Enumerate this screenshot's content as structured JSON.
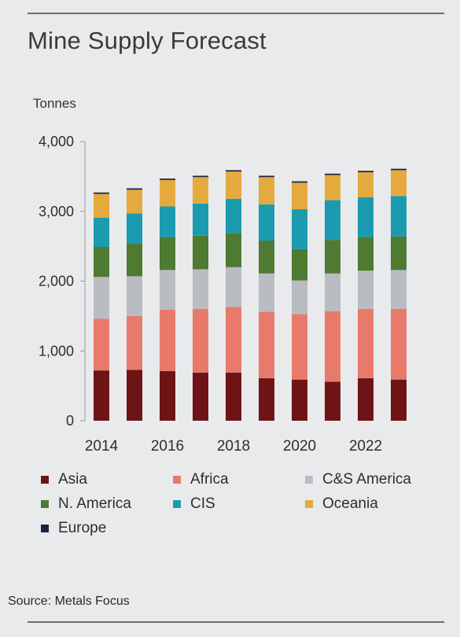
{
  "page": {
    "title": "Mine Supply Forecast",
    "unit_label": "Tonnes",
    "source": "Source: Metals Focus"
  },
  "chart_data": {
    "type": "bar",
    "stacked": true,
    "title": "Mine Supply Forecast",
    "ylabel": "Tonnes",
    "xlabel": "",
    "ylim": [
      0,
      4000
    ],
    "yticks": [
      0,
      1000,
      2000,
      3000,
      4000
    ],
    "ytick_labels": [
      "0",
      "1,000",
      "2,000",
      "3,000",
      "4,000"
    ],
    "x": [
      2014,
      2015,
      2016,
      2017,
      2018,
      2019,
      2020,
      2021,
      2022,
      2023
    ],
    "xtick_labels": [
      "2014",
      "2016",
      "2018",
      "2020",
      "2022"
    ],
    "xtick_years": [
      2014,
      2016,
      2018,
      2020,
      2022
    ],
    "grid": false,
    "legend_position": "bottom",
    "series": [
      {
        "name": "Asia",
        "color": "#6e1416",
        "values": [
          720,
          730,
          710,
          690,
          690,
          610,
          590,
          560,
          610,
          590
        ]
      },
      {
        "name": "Africa",
        "color": "#e87a6c",
        "values": [
          740,
          770,
          880,
          910,
          940,
          950,
          940,
          1010,
          990,
          1010
        ]
      },
      {
        "name": "C&S America",
        "color": "#b9bcc1",
        "values": [
          600,
          570,
          570,
          570,
          570,
          550,
          480,
          540,
          550,
          560
        ]
      },
      {
        "name": "N. America",
        "color": "#4e7a32",
        "values": [
          430,
          470,
          470,
          480,
          490,
          470,
          450,
          480,
          480,
          480
        ]
      },
      {
        "name": "CIS",
        "color": "#1a9bb0",
        "values": [
          420,
          430,
          440,
          460,
          490,
          520,
          570,
          570,
          570,
          580
        ]
      },
      {
        "name": "Oceania",
        "color": "#e4aa3e",
        "values": [
          340,
          340,
          380,
          380,
          390,
          390,
          380,
          360,
          360,
          370
        ]
      },
      {
        "name": "Europe",
        "color": "#1c2340",
        "values": [
          20,
          20,
          20,
          20,
          20,
          20,
          20,
          20,
          20,
          20
        ]
      }
    ]
  }
}
